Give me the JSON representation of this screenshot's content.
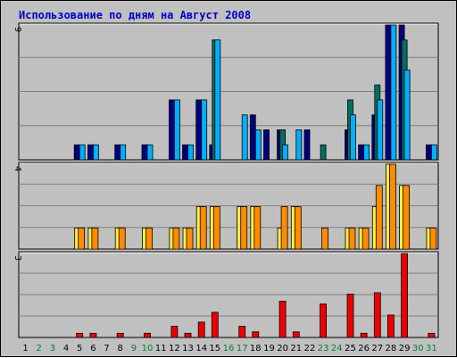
{
  "chart_data": {
    "type": "bar",
    "title": "Использование по дням на Август 2008",
    "colors": {
      "background": "#c0c0c0",
      "grid": "#808080",
      "title": "#0000cc",
      "weekday_label": "#000000",
      "weekend_label": "#008040"
    },
    "days": [
      "1",
      "2",
      "3",
      "4",
      "5",
      "6",
      "7",
      "8",
      "9",
      "10",
      "11",
      "12",
      "13",
      "14",
      "15",
      "16",
      "17",
      "18",
      "19",
      "20",
      "21",
      "22",
      "23",
      "24",
      "25",
      "26",
      "27",
      "28",
      "29",
      "30",
      "31"
    ],
    "weekend_days": [
      "2",
      "3",
      "9",
      "10",
      "16",
      "17",
      "23",
      "24",
      "30",
      "31"
    ],
    "panels": [
      {
        "max_label": "9",
        "ylim": [
          0,
          9
        ],
        "series": [
          {
            "color": "#000080",
            "values": [
              0,
              0,
              0,
              0,
              1,
              1,
              0,
              1,
              0,
              1,
              0,
              4,
              1,
              4,
              1,
              0,
              0,
              3,
              2,
              2,
              0,
              2,
              0,
              0,
              2,
              1,
              3,
              9,
              9,
              0,
              1
            ]
          },
          {
            "color": "#007060",
            "values": [
              0,
              0,
              0,
              0,
              0,
              0,
              0,
              0,
              0,
              0,
              0,
              0,
              0,
              0,
              8,
              0,
              0,
              0,
              0,
              2,
              0,
              0,
              1,
              0,
              4,
              0,
              5,
              0,
              8,
              0,
              0
            ]
          },
          {
            "color": "#00b0ff",
            "values": [
              0,
              0,
              0,
              0,
              1,
              1,
              0,
              1,
              0,
              1,
              0,
              4,
              1,
              4,
              8,
              0,
              3,
              2,
              0,
              1,
              2,
              0,
              0,
              0,
              3,
              1,
              4,
              9,
              6,
              0,
              1
            ]
          }
        ]
      },
      {
        "max_label": "4",
        "ylim": [
          0,
          4
        ],
        "series": [
          {
            "color": "#ffee44",
            "values": [
              0,
              0,
              0,
              0,
              1,
              1,
              0,
              1,
              0,
              1,
              0,
              1,
              1,
              2,
              2,
              0,
              2,
              2,
              0,
              1,
              2,
              0,
              0,
              0,
              1,
              1,
              2,
              4,
              3,
              0,
              1
            ]
          },
          {
            "color": "#ff8c00",
            "values": [
              0,
              0,
              0,
              0,
              1,
              1,
              0,
              1,
              0,
              1,
              0,
              1,
              1,
              2,
              2,
              0,
              2,
              2,
              0,
              2,
              2,
              0,
              1,
              0,
              1,
              1,
              3,
              4,
              3,
              0,
              1
            ]
          }
        ]
      },
      {
        "max_label": "3",
        "ylim": [
          0,
          3
        ],
        "series": [
          {
            "color": "#ee0000",
            "values": [
              0,
              0,
              0,
              0,
              0.15,
              0.15,
              0,
              0.15,
              0,
              0.15,
              0,
              0.4,
              0.15,
              0.55,
              0.9,
              0,
              0.4,
              0.2,
              0,
              1.3,
              0.2,
              0,
              1.2,
              0,
              1.55,
              0.15,
              1.6,
              0.8,
              3,
              0,
              0.15
            ]
          }
        ]
      }
    ]
  }
}
